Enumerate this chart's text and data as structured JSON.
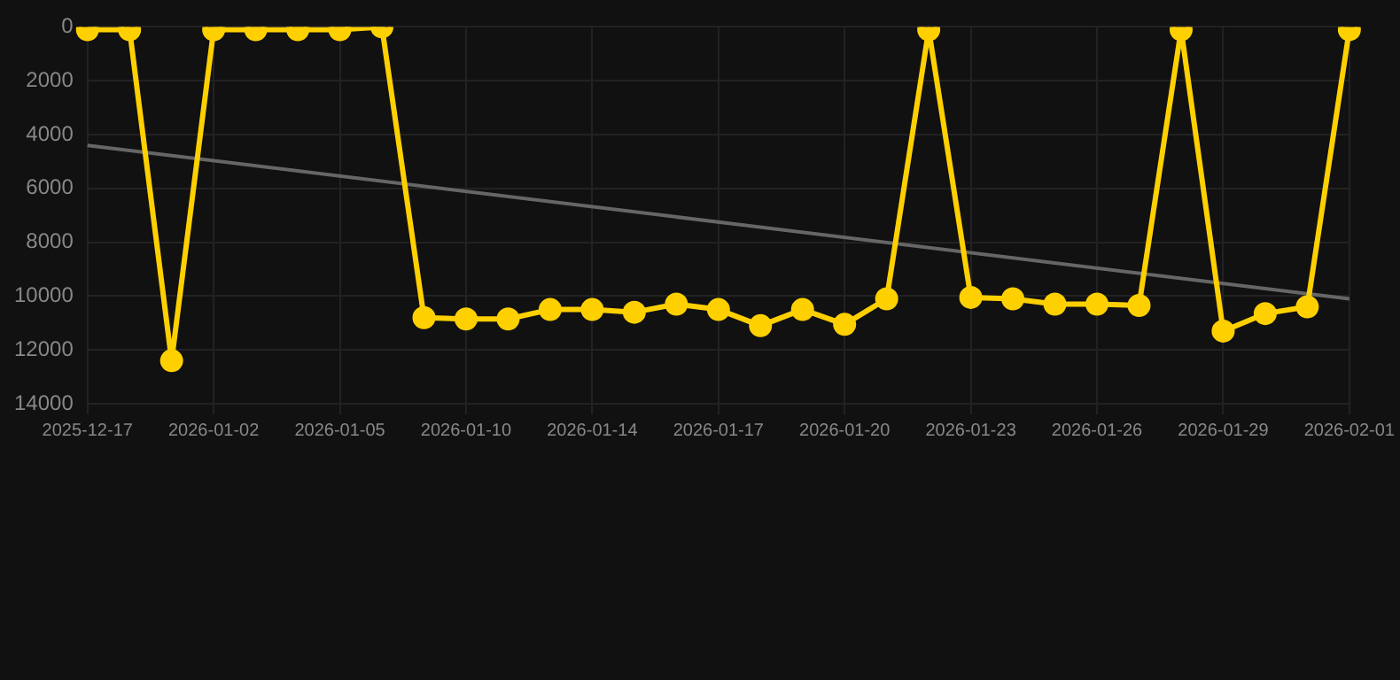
{
  "chart_data": {
    "type": "line",
    "categories": [
      "2025-12-17",
      null,
      null,
      "2026-01-02",
      null,
      null,
      "2026-01-05",
      null,
      null,
      "2026-01-10",
      null,
      null,
      "2026-01-14",
      null,
      null,
      "2026-01-17",
      null,
      null,
      "2026-01-20",
      null,
      null,
      "2026-01-23",
      null,
      null,
      "2026-01-26",
      null,
      null,
      "2026-01-29",
      null,
      null,
      "2026-02-01"
    ],
    "series": [
      {
        "color": "#ffd000",
        "values": [
          100,
          100,
          12400,
          100,
          100,
          100,
          100,
          0,
          10800,
          10850,
          10850,
          10500,
          10500,
          10600,
          10300,
          10500,
          11100,
          10500,
          11050,
          10100,
          100,
          10050,
          10100,
          10300,
          10300,
          10350,
          100,
          11300,
          10650,
          10400,
          100
        ]
      },
      {
        "type": "line",
        "color": "#666666",
        "marker": "none",
        "values": [
          4400,
          null,
          null,
          null,
          null,
          null,
          null,
          null,
          null,
          null,
          null,
          null,
          null,
          null,
          null,
          null,
          null,
          null,
          null,
          null,
          null,
          null,
          null,
          null,
          null,
          null,
          null,
          null,
          null,
          null,
          10100
        ]
      }
    ],
    "ylim": [
      14000,
      0
    ],
    "yticks": [
      0,
      2000,
      4000,
      6000,
      8000,
      10000,
      12000,
      14000
    ],
    "grid": true,
    "legend": false,
    "marker": "circle",
    "line_style": "solid"
  }
}
